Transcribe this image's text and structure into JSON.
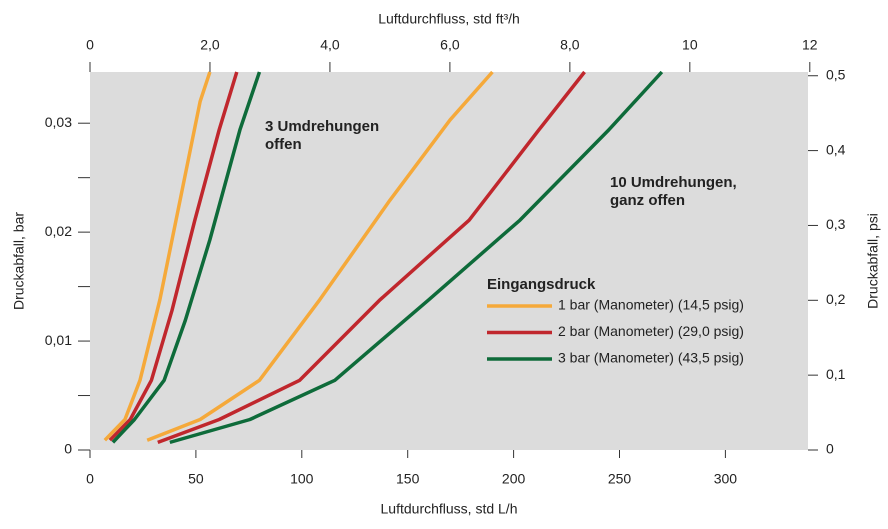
{
  "chart_data": {
    "type": "line",
    "xlabel": "Luftdurchfluss, std L/h",
    "x2label": "Luftdurchfluss, std ft³/h",
    "ylabel": "Druckabfall, bar",
    "y2label": "Druckabfall, psi",
    "xlim": [
      0,
      339
    ],
    "xticks": [
      0,
      50,
      100,
      150,
      200,
      250,
      300
    ],
    "x2lim": [
      0,
      11.97
    ],
    "x2ticks": [
      0,
      {
        "value": 2,
        "label": "2,0"
      },
      {
        "value": 4,
        "label": "4,0"
      },
      {
        "value": 6,
        "label": "6,0"
      },
      {
        "value": 8,
        "label": "8,0"
      },
      10,
      12
    ],
    "ylim": [
      0,
      0.0347
    ],
    "yticks": [
      0,
      {
        "value": 0.01,
        "label": "0,01"
      },
      {
        "value": 0.02,
        "label": "0,02"
      },
      {
        "value": 0.03,
        "label": "0,03"
      }
    ],
    "yminorticks": [
      0.005,
      0.015,
      0.025
    ],
    "y2lim": [
      0,
      0.505
    ],
    "y2ticks": [
      0,
      {
        "value": 0.1,
        "label": "0,1"
      },
      {
        "value": 0.2,
        "label": "0,2"
      },
      {
        "value": 0.3,
        "label": "0,3"
      },
      {
        "value": 0.4,
        "label": "0,4"
      },
      {
        "value": 0.5,
        "label": "0,5"
      }
    ],
    "legend_title": "Eingangsdruck",
    "annotations": [
      {
        "lines": [
          "3 Umdrehungen",
          "offen"
        ]
      },
      {
        "lines": [
          "10 Umdrehungen,",
          "ganz offen"
        ]
      }
    ],
    "series": [
      {
        "name": "1 bar (Manometer) (14,5 psig)",
        "color": "#f5a93a",
        "curves": [
          {
            "x": [
              7,
              16.5,
              23.6,
              33,
              42.5,
              52,
              56.6
            ],
            "y": [
              0.0009,
              0.0028,
              0.0064,
              0.0138,
              0.0229,
              0.032,
              0.0347
            ]
          },
          {
            "x": [
              27,
              52,
              80,
              108.5,
              141.5,
              170,
              190
            ],
            "y": [
              0.0009,
              0.0028,
              0.0064,
              0.0138,
              0.0229,
              0.0303,
              0.0347
            ]
          }
        ]
      },
      {
        "name": "2 bar (Manometer) (29,0 psig)",
        "color": "#c0272d",
        "curves": [
          {
            "x": [
              9.4,
              19,
              29,
              38.7,
              49.5,
              61,
              69.3
            ],
            "y": [
              0.0009,
              0.0028,
              0.0064,
              0.0128,
              0.0211,
              0.0294,
              0.0347
            ]
          },
          {
            "x": [
              32,
              61,
              99,
              137,
              179,
              212,
              233.5
            ],
            "y": [
              0.0007,
              0.0028,
              0.0064,
              0.0138,
              0.0211,
              0.0294,
              0.0347
            ]
          }
        ]
      },
      {
        "name": "3 bar (Manometer) (43,5 psig)",
        "color": "#0e6b3a",
        "curves": [
          {
            "x": [
              10.8,
              21,
              35,
              45,
              56.6,
              70.8,
              80
            ],
            "y": [
              0.0007,
              0.0028,
              0.0064,
              0.0119,
              0.0193,
              0.0294,
              0.0347
            ]
          },
          {
            "x": [
              37.7,
              75.5,
              115.6,
              160,
              203,
              245,
              270
            ],
            "y": [
              0.0007,
              0.0028,
              0.0064,
              0.0138,
              0.0211,
              0.0294,
              0.0347
            ]
          }
        ]
      }
    ]
  }
}
